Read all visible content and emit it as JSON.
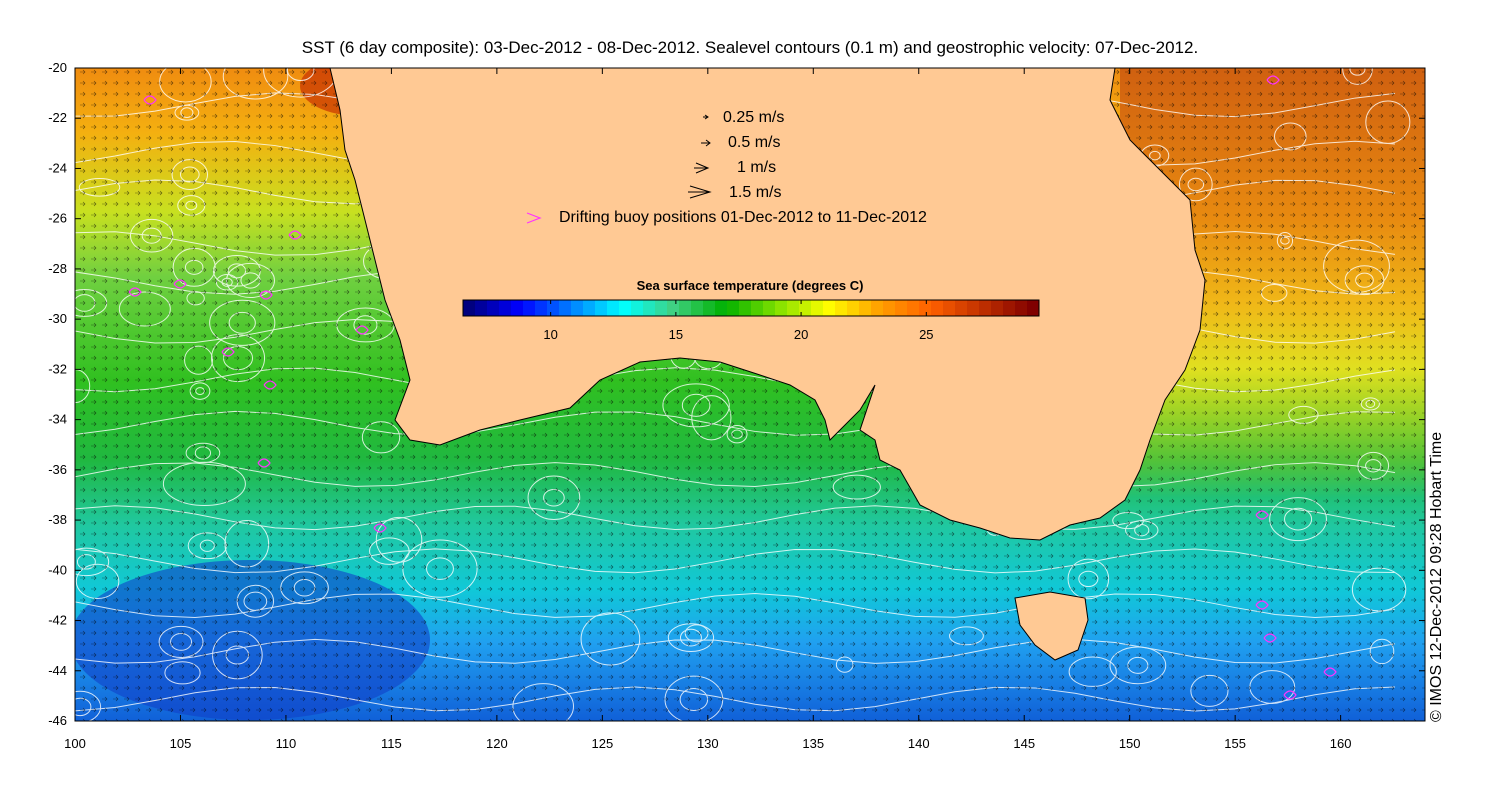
{
  "title": "SST (6 day composite): 03-Dec-2012 - 08-Dec-2012. Sealevel contours (0.1 m) and geostrophic velocity: 07-Dec-2012.",
  "credit": "© IMOS 12-Dec-2012 09:28 Hobart Time",
  "axes": {
    "x_ticks": [
      "100",
      "105",
      "110",
      "115",
      "120",
      "125",
      "130",
      "135",
      "140",
      "145",
      "150",
      "155",
      "160"
    ],
    "y_ticks": [
      "-20",
      "-22",
      "-24",
      "-26",
      "-28",
      "-30",
      "-32",
      "-34",
      "-36",
      "-38",
      "-40",
      "-42",
      "-44",
      "-46"
    ],
    "xlim": [
      100,
      164
    ],
    "ylim": [
      -46,
      -20
    ]
  },
  "legend": {
    "speeds": [
      "0.25 m/s",
      "0.5 m/s",
      "1 m/s",
      "1.5 m/s"
    ],
    "buoy_label": "Drifting buoy positions 01-Dec-2012 to 11-Dec-2012",
    "buoy_color": "#ff33ff",
    "arrow_color": "#000000"
  },
  "colorbar": {
    "title": "Sea surface temperature (degrees C)",
    "ticks": [
      "10",
      "15",
      "20",
      "25"
    ],
    "range": [
      6.5,
      29.5
    ],
    "colors": [
      "#00007f",
      "#0000ff",
      "#0080ff",
      "#00ffff",
      "#40d080",
      "#00b000",
      "#80e000",
      "#ffff00",
      "#ffa000",
      "#ff6000",
      "#c03000",
      "#800000"
    ]
  },
  "map": {
    "land_color": "#ffc994",
    "contour_color": "#ffffff"
  }
}
